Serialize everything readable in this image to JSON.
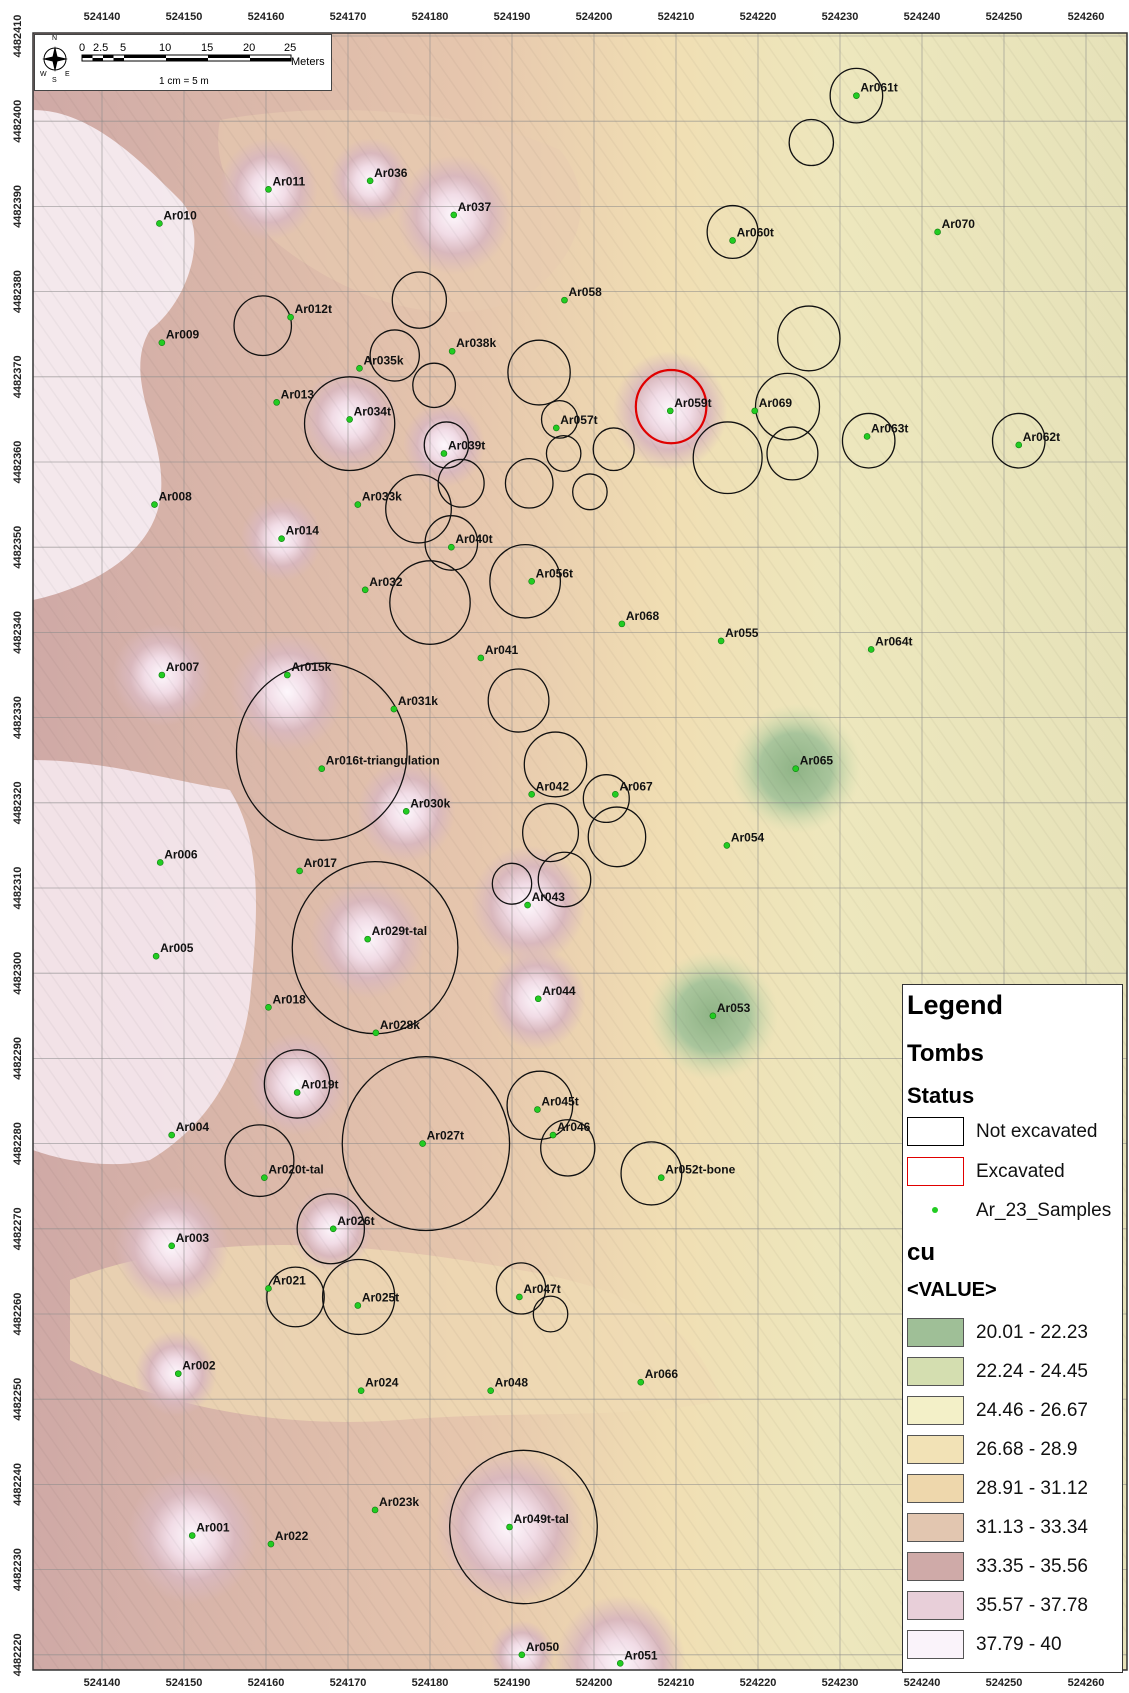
{
  "x_ticks": [
    "524140",
    "524150",
    "524160",
    "524170",
    "524180",
    "524190",
    "524200",
    "524210",
    "524220",
    "524230",
    "524240",
    "524250",
    "524260"
  ],
  "y_ticks": [
    "4482410",
    "4482400",
    "4482390",
    "4482380",
    "4482370",
    "4482360",
    "4482350",
    "4482340",
    "4482330",
    "4482320",
    "4482310",
    "4482300",
    "4482290",
    "4482280",
    "4482270",
    "4482260",
    "4482250",
    "4482240",
    "4482230",
    "4482220"
  ],
  "scalebar": {
    "numbers": [
      "0",
      "2.5",
      "5",
      "10",
      "15",
      "20",
      "25"
    ],
    "unit": "Meters",
    "ratio": "1 cm = 5 m",
    "compass_letters": [
      "N",
      "E",
      "S",
      "W"
    ]
  },
  "samples": [
    {
      "label": "Ar001",
      "x": 524151,
      "y": 4482234
    },
    {
      "label": "Ar002",
      "x": 524149.3,
      "y": 4482253
    },
    {
      "label": "Ar003",
      "x": 524148.5,
      "y": 4482268
    },
    {
      "label": "Ar004",
      "x": 524148.5,
      "y": 4482281
    },
    {
      "label": "Ar005",
      "x": 524146.6,
      "y": 4482302
    },
    {
      "label": "Ar006",
      "x": 524147.1,
      "y": 4482313
    },
    {
      "label": "Ar007",
      "x": 524147.3,
      "y": 4482335
    },
    {
      "label": "Ar008",
      "x": 524146.4,
      "y": 4482355
    },
    {
      "label": "Ar009",
      "x": 524147.3,
      "y": 4482374
    },
    {
      "label": "Ar010",
      "x": 524147,
      "y": 4482388
    },
    {
      "label": "Ar011",
      "x": 524160.3,
      "y": 4482392
    },
    {
      "label": "Ar012t",
      "x": 524163,
      "y": 4482377
    },
    {
      "label": "Ar013",
      "x": 524161.3,
      "y": 4482367
    },
    {
      "label": "Ar014",
      "x": 524161.9,
      "y": 4482351
    },
    {
      "label": "Ar015k",
      "x": 524162.6,
      "y": 4482335
    },
    {
      "label": "Ar016t-triangulation",
      "x": 524166.8,
      "y": 4482324
    },
    {
      "label": "Ar017",
      "x": 524164.1,
      "y": 4482312
    },
    {
      "label": "Ar018",
      "x": 524160.3,
      "y": 4482296
    },
    {
      "label": "Ar019t",
      "x": 524163.8,
      "y": 4482286
    },
    {
      "label": "Ar020t-tal",
      "x": 524159.8,
      "y": 4482276
    },
    {
      "label": "Ar021",
      "x": 524160.3,
      "y": 4482263
    },
    {
      "label": "Ar022",
      "x": 524160.6,
      "y": 4482233
    },
    {
      "label": "Ar023k",
      "x": 524173.3,
      "y": 4482237
    },
    {
      "label": "Ar024",
      "x": 524171.6,
      "y": 4482251
    },
    {
      "label": "Ar025t",
      "x": 524171.2,
      "y": 4482261
    },
    {
      "label": "Ar026t",
      "x": 524168.2,
      "y": 4482270
    },
    {
      "label": "Ar027t",
      "x": 524179.1,
      "y": 4482280
    },
    {
      "label": "Ar028k",
      "x": 524173.4,
      "y": 4482293
    },
    {
      "label": "Ar029t-tal",
      "x": 524172.4,
      "y": 4482304
    },
    {
      "label": "Ar030k",
      "x": 524177.1,
      "y": 4482319
    },
    {
      "label": "Ar031k",
      "x": 524175.6,
      "y": 4482331
    },
    {
      "label": "Ar032",
      "x": 524172.1,
      "y": 4482345
    },
    {
      "label": "Ar033k",
      "x": 524171.2,
      "y": 4482355
    },
    {
      "label": "Ar034t",
      "x": 524170.2,
      "y": 4482365
    },
    {
      "label": "Ar035k",
      "x": 524171.4,
      "y": 4482371
    },
    {
      "label": "Ar036",
      "x": 524172.7,
      "y": 4482393
    },
    {
      "label": "Ar037",
      "x": 524182.9,
      "y": 4482389
    },
    {
      "label": "Ar038k",
      "x": 524182.7,
      "y": 4482373
    },
    {
      "label": "Ar039t",
      "x": 524181.7,
      "y": 4482361
    },
    {
      "label": "Ar040t",
      "x": 524182.6,
      "y": 4482350
    },
    {
      "label": "Ar041",
      "x": 524186.2,
      "y": 4482337
    },
    {
      "label": "Ar042",
      "x": 524192.4,
      "y": 4482321
    },
    {
      "label": "Ar043",
      "x": 524191.9,
      "y": 4482308
    },
    {
      "label": "Ar044",
      "x": 524193.2,
      "y": 4482297
    },
    {
      "label": "Ar045t",
      "x": 524193.1,
      "y": 4482284
    },
    {
      "label": "Ar046",
      "x": 524195,
      "y": 4482281
    },
    {
      "label": "Ar047t",
      "x": 524190.9,
      "y": 4482262
    },
    {
      "label": "Ar048",
      "x": 524187.4,
      "y": 4482251
    },
    {
      "label": "Ar049t-tal",
      "x": 524189.7,
      "y": 4482235
    },
    {
      "label": "Ar050",
      "x": 524191.2,
      "y": 4482220
    },
    {
      "label": "Ar051",
      "x": 524203.2,
      "y": 4482219
    },
    {
      "label": "Ar052t-bone",
      "x": 524208.2,
      "y": 4482276
    },
    {
      "label": "Ar053",
      "x": 524214.5,
      "y": 4482295
    },
    {
      "label": "Ar054",
      "x": 524216.2,
      "y": 4482315
    },
    {
      "label": "Ar055",
      "x": 524215.5,
      "y": 4482339
    },
    {
      "label": "Ar056t",
      "x": 524192.4,
      "y": 4482346
    },
    {
      "label": "Ar057t",
      "x": 524195.4,
      "y": 4482364
    },
    {
      "label": "Ar058",
      "x": 524196.4,
      "y": 4482379
    },
    {
      "label": "Ar059t",
      "x": 524209.3,
      "y": 4482366
    },
    {
      "label": "Ar060t",
      "x": 524216.9,
      "y": 4482386
    },
    {
      "label": "Ar061t",
      "x": 524232,
      "y": 4482403
    },
    {
      "label": "Ar062t",
      "x": 524251.8,
      "y": 4482362
    },
    {
      "label": "Ar063t",
      "x": 524233.3,
      "y": 4482363
    },
    {
      "label": "Ar064t",
      "x": 524233.8,
      "y": 4482338
    },
    {
      "label": "Ar065",
      "x": 524224.6,
      "y": 4482324
    },
    {
      "label": "Ar066",
      "x": 524205.7,
      "y": 4482252
    },
    {
      "label": "Ar067",
      "x": 524202.6,
      "y": 4482321
    },
    {
      "label": "Ar068",
      "x": 524203.4,
      "y": 4482341
    },
    {
      "label": "Ar069",
      "x": 524219.6,
      "y": 4482366
    },
    {
      "label": "Ar070",
      "x": 524241.9,
      "y": 4482387
    }
  ],
  "tombs": [
    {
      "x": 524232,
      "y": 4482403,
      "r": 3.2,
      "status": "Not excavated"
    },
    {
      "x": 524226.5,
      "y": 4482397.5,
      "r": 2.7,
      "status": "Not excavated"
    },
    {
      "x": 524216.9,
      "y": 4482387,
      "r": 3.1,
      "status": "Not excavated"
    },
    {
      "x": 524159.6,
      "y": 4482376,
      "r": 3.5,
      "status": "Not excavated"
    },
    {
      "x": 524178.7,
      "y": 4482379,
      "r": 3.3,
      "status": "Not excavated"
    },
    {
      "x": 524175.7,
      "y": 4482372.5,
      "r": 3.0,
      "status": "Not excavated"
    },
    {
      "x": 524180.5,
      "y": 4482369,
      "r": 2.6,
      "status": "Not excavated"
    },
    {
      "x": 524193.3,
      "y": 4482370.5,
      "r": 3.8,
      "status": "Not excavated"
    },
    {
      "x": 524226.2,
      "y": 4482374.5,
      "r": 3.8,
      "status": "Not excavated"
    },
    {
      "x": 524223.6,
      "y": 4482366.5,
      "r": 3.9,
      "status": "Not excavated"
    },
    {
      "x": 524170.2,
      "y": 4482364.5,
      "r": 5.5,
      "status": "Not excavated"
    },
    {
      "x": 524182,
      "y": 4482362,
      "r": 2.7,
      "status": "Not excavated"
    },
    {
      "x": 524195.8,
      "y": 4482365,
      "r": 2.2,
      "status": "Not excavated"
    },
    {
      "x": 524196.3,
      "y": 4482361,
      "r": 2.1,
      "status": "Not excavated"
    },
    {
      "x": 524202.4,
      "y": 4482361.5,
      "r": 2.5,
      "status": "Not excavated"
    },
    {
      "x": 524216.3,
      "y": 4482360.5,
      "r": 4.2,
      "status": "Not excavated"
    },
    {
      "x": 524224.2,
      "y": 4482361,
      "r": 3.1,
      "status": "Not excavated"
    },
    {
      "x": 524233.5,
      "y": 4482362.5,
      "r": 3.2,
      "status": "Not excavated"
    },
    {
      "x": 524251.8,
      "y": 4482362.5,
      "r": 3.2,
      "status": "Not excavated"
    },
    {
      "x": 524192.1,
      "y": 4482357.5,
      "r": 2.9,
      "status": "Not excavated"
    },
    {
      "x": 524199.5,
      "y": 4482356.5,
      "r": 2.1,
      "status": "Not excavated"
    },
    {
      "x": 524183.8,
      "y": 4482357.5,
      "r": 2.8,
      "status": "Not excavated"
    },
    {
      "x": 524178.6,
      "y": 4482354.5,
      "r": 4.0,
      "status": "Not excavated"
    },
    {
      "x": 524182.6,
      "y": 4482350.5,
      "r": 3.2,
      "status": "Not excavated"
    },
    {
      "x": 524191.6,
      "y": 4482346,
      "r": 4.3,
      "status": "Not excavated"
    },
    {
      "x": 524180,
      "y": 4482343.5,
      "r": 4.9,
      "status": "Not excavated"
    },
    {
      "x": 524190.8,
      "y": 4482332,
      "r": 3.7,
      "status": "Not excavated"
    },
    {
      "x": 524166.8,
      "y": 4482326,
      "r": 10.4,
      "status": "Not excavated"
    },
    {
      "x": 524195.3,
      "y": 4482324.5,
      "r": 3.8,
      "status": "Not excavated"
    },
    {
      "x": 524201.5,
      "y": 4482320.5,
      "r": 2.8,
      "status": "Not excavated"
    },
    {
      "x": 524194.7,
      "y": 4482316.5,
      "r": 3.4,
      "status": "Not excavated"
    },
    {
      "x": 524202.8,
      "y": 4482316,
      "r": 3.5,
      "status": "Not excavated"
    },
    {
      "x": 524196.4,
      "y": 4482311,
      "r": 3.2,
      "status": "Not excavated"
    },
    {
      "x": 524190,
      "y": 4482310.5,
      "r": 2.4,
      "status": "Not excavated"
    },
    {
      "x": 524179.5,
      "y": 4482280,
      "r": 10.2,
      "status": "Not excavated"
    },
    {
      "x": 524173.3,
      "y": 4482303,
      "r": 10.1,
      "status": "Not excavated"
    },
    {
      "x": 524163.8,
      "y": 4482287,
      "r": 4.0,
      "status": "Not excavated"
    },
    {
      "x": 524159.2,
      "y": 4482278,
      "r": 4.2,
      "status": "Not excavated"
    },
    {
      "x": 524193.4,
      "y": 4482284.5,
      "r": 4.0,
      "status": "Not excavated"
    },
    {
      "x": 524196.8,
      "y": 4482279.5,
      "r": 3.3,
      "status": "Not excavated"
    },
    {
      "x": 524207,
      "y": 4482276.5,
      "r": 3.7,
      "status": "Not excavated"
    },
    {
      "x": 524167.9,
      "y": 4482270,
      "r": 4.1,
      "status": "Not excavated"
    },
    {
      "x": 524163.6,
      "y": 4482262,
      "r": 3.5,
      "status": "Not excavated"
    },
    {
      "x": 524171.3,
      "y": 4482262,
      "r": 4.4,
      "status": "Not excavated"
    },
    {
      "x": 524191.1,
      "y": 4482263,
      "r": 3.0,
      "status": "Not excavated"
    },
    {
      "x": 524194.7,
      "y": 4482260,
      "r": 2.1,
      "status": "Not excavated"
    },
    {
      "x": 524191.4,
      "y": 4482235,
      "r": 9.0,
      "status": "Not excavated"
    },
    {
      "x": 524209.4,
      "y": 4482366.5,
      "r": 4.3,
      "status": "Excavated"
    }
  ],
  "highs": [
    {
      "x": 524151,
      "y": 4482234,
      "r": 8
    },
    {
      "x": 524148.5,
      "y": 4482268,
      "r": 7
    },
    {
      "x": 524149,
      "y": 4482253,
      "r": 5
    },
    {
      "x": 524147.3,
      "y": 4482335,
      "r": 6
    },
    {
      "x": 524160.3,
      "y": 4482392,
      "r": 6
    },
    {
      "x": 524172.7,
      "y": 4482393,
      "r": 5
    },
    {
      "x": 524182.9,
      "y": 4482389,
      "r": 7
    },
    {
      "x": 524162.6,
      "y": 4482333,
      "r": 7
    },
    {
      "x": 524170.2,
      "y": 4482365,
      "r": 6
    },
    {
      "x": 524177.1,
      "y": 4482319,
      "r": 6
    },
    {
      "x": 524172.4,
      "y": 4482304,
      "r": 7
    },
    {
      "x": 524163.8,
      "y": 4482287,
      "r": 6
    },
    {
      "x": 524192,
      "y": 4482308,
      "r": 7
    },
    {
      "x": 524193,
      "y": 4482297,
      "r": 6
    },
    {
      "x": 524189.7,
      "y": 4482235,
      "r": 9
    },
    {
      "x": 524203.2,
      "y": 4482219,
      "r": 8
    },
    {
      "x": 524209.3,
      "y": 4482366,
      "r": 7
    },
    {
      "x": 524161.9,
      "y": 4482351,
      "r": 5
    },
    {
      "x": 524181.7,
      "y": 4482362,
      "r": 5
    },
    {
      "x": 524168,
      "y": 4482270,
      "r": 5
    },
    {
      "x": 524191.2,
      "y": 4482220,
      "r": 4
    }
  ],
  "lows": [
    {
      "x": 524224.6,
      "y": 4482324,
      "r": 8
    },
    {
      "x": 524214.5,
      "y": 4482295,
      "r": 8
    }
  ],
  "legend": {
    "title": "Legend",
    "group1": "Tombs",
    "group2": "Status",
    "status_items": [
      {
        "label": "Not excavated",
        "color": "#000000"
      },
      {
        "label": "Excavated",
        "color": "#e00000"
      }
    ],
    "sample_item": {
      "label": "Ar_23_Samples",
      "color": "#22cc22"
    },
    "cu_title": "cu",
    "value_title": "<VALUE>",
    "classes": [
      {
        "label": "20.01 - 22.23",
        "color": "#9fbf97"
      },
      {
        "label": "22.24 - 24.45",
        "color": "#d4deb0"
      },
      {
        "label": "24.46 - 26.67",
        "color": "#f3f0c8"
      },
      {
        "label": "26.68 - 28.9",
        "color": "#f2e2b6"
      },
      {
        "label": "28.91 - 31.12",
        "color": "#eed7ac"
      },
      {
        "label": "31.13 - 33.34",
        "color": "#e2c6b0"
      },
      {
        "label": "33.35 - 35.56",
        "color": "#cfaaa8"
      },
      {
        "label": "35.57 - 37.78",
        "color": "#e8cfd9"
      },
      {
        "label": "37.79 - 40",
        "color": "#faf3fa"
      }
    ]
  }
}
